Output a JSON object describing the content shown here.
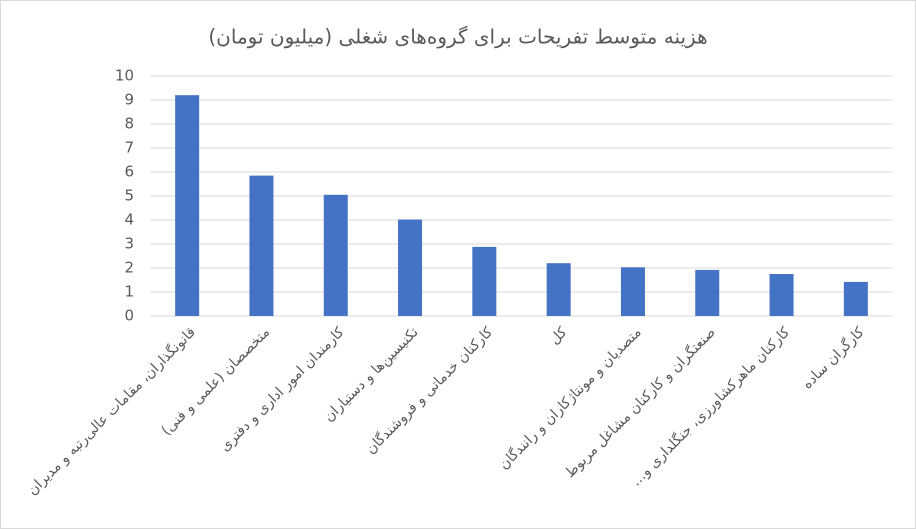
{
  "chart_data": {
    "type": "bar",
    "title": "هزینه متوسط تفریحات برای گروه‌های شغلی (میلیون تومان)",
    "categories": [
      "قانونگذاران، مقامات عالی‌رتبه و مدیران",
      "متخصصان (علمی و فنی)",
      "کارمندان امور اداری و دفتری",
      "تکنیسین‌ها و دستیاران",
      "کارکنان خدماتی و فروشندگان",
      "کل",
      "متصدیان و مونتاژکاران و رانندگان",
      "صنعتگران و کارکنان مشاغل مربوط",
      "کارکنان ماهرکشاورزی، جنگلداری و…",
      "کارگران ساده"
    ],
    "values": [
      9.2,
      5.85,
      5.05,
      4.02,
      2.88,
      2.2,
      2.03,
      1.92,
      1.75,
      1.42
    ],
    "color": "#4472c4",
    "ylim": [
      0,
      10
    ],
    "yticks": [
      0,
      1,
      2,
      3,
      4,
      5,
      6,
      7,
      8,
      9,
      10
    ],
    "grid": true
  }
}
